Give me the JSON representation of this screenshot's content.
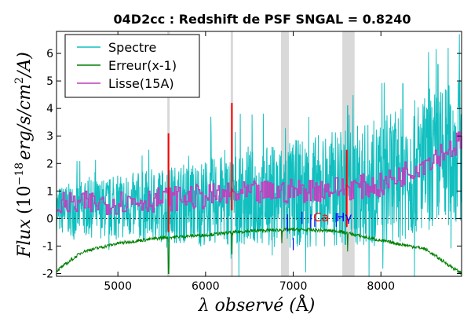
{
  "chart_data": {
    "type": "line",
    "title": "04D2cc : Redshift de PSF SNGAL = 0.8240",
    "xlabel": "λ observé (Å)",
    "ylabel": "Flux (10^-18 erg/s/cm²/A)",
    "ylabel_parts": {
      "word": "Flux",
      "open": "(10",
      "exp": "−18",
      "units": "erg/s/cm",
      "sq": "2",
      "tail": "/A)"
    },
    "xlabel_parts": {
      "main": "λ observé (",
      "unit": "Å",
      "close": ")"
    },
    "xlim": [
      4300,
      8920
    ],
    "ylim": [
      -2.1,
      6.8
    ],
    "x_ticks": [
      5000,
      6000,
      7000,
      8000
    ],
    "x_tick_labels": [
      "5000",
      "6000",
      "7000",
      "8000"
    ],
    "y_ticks": [
      -2,
      -1,
      0,
      1,
      2,
      3,
      4,
      5,
      6
    ],
    "y_tick_labels": [
      "-2",
      "-1",
      "0",
      "1",
      "2",
      "3",
      "4",
      "5",
      "6"
    ],
    "legend_position": "top-left",
    "grid": false,
    "colors": {
      "spectrum": "#11bfbf",
      "error": "#008000",
      "smooth": "#bf3fbf",
      "sky": "#ff0000",
      "band": "#d9d9d9",
      "lines": "#0000ff",
      "line_labels_red": "#ff0000"
    },
    "series": [
      {
        "name": "Spectre",
        "x_range": [
          4300,
          8920
        ],
        "shape_points": [
          [
            4300,
            0.3
          ],
          [
            5000,
            0.4
          ],
          [
            6000,
            0.6
          ],
          [
            7000,
            0.9
          ],
          [
            8000,
            1.3
          ],
          [
            8920,
            2.5
          ]
        ],
        "spike_points": [
          [
            8895,
            6.7
          ],
          [
            8650,
            5.6
          ],
          [
            8250,
            4.9
          ],
          [
            7620,
            4.1
          ],
          [
            6060,
            3.7
          ]
        ]
      },
      {
        "name": "Erreur(x-1)",
        "x_range": [
          4300,
          8920
        ],
        "shape_points": [
          [
            4300,
            -1.9
          ],
          [
            4600,
            -1.2
          ],
          [
            5000,
            -0.9
          ],
          [
            5500,
            -0.7
          ],
          [
            6000,
            -0.6
          ],
          [
            6500,
            -0.45
          ],
          [
            7000,
            -0.4
          ],
          [
            7500,
            -0.45
          ],
          [
            8000,
            -0.8
          ],
          [
            8500,
            -1.1
          ],
          [
            8920,
            -2.0
          ]
        ],
        "dip_points": [
          [
            5577,
            -2.0
          ],
          [
            6300,
            -1.3
          ],
          [
            6870,
            -0.9
          ],
          [
            7620,
            -1.2
          ]
        ]
      },
      {
        "name": "Lisse(15A)",
        "x_range": [
          4300,
          8920
        ],
        "shape_points": [
          [
            4300,
            0.5
          ],
          [
            5000,
            0.6
          ],
          [
            6000,
            0.8
          ],
          [
            7000,
            1.0
          ],
          [
            8000,
            1.2
          ],
          [
            8920,
            2.8
          ]
        ]
      }
    ],
    "sky_lines": [
      {
        "x": 5577,
        "y_top": 3.1,
        "y_bottom": -0.5
      },
      {
        "x": 6300,
        "y_top": 4.2,
        "y_bottom": 0.3
      },
      {
        "x": 7610,
        "y_top": 2.5,
        "y_bottom": -0.3
      }
    ],
    "telluric_bands": [
      [
        6860,
        6950
      ],
      [
        7560,
        7700
      ]
    ],
    "thin_bands": [
      5577,
      6300
    ],
    "line_markers": [
      {
        "x": 6935,
        "y_top": 0.15,
        "y_bottom": -0.45
      },
      {
        "x": 7000,
        "y_top": -0.7,
        "y_bottom": -1.15
      },
      {
        "x": 7100,
        "y_top": 0.25,
        "y_bottom": -0.2
      },
      {
        "x": 7200,
        "y_top": 0.15,
        "y_bottom": -0.35
      },
      {
        "x": 7245,
        "y_top": 0.15,
        "y_bottom": -0.3
      },
      {
        "x": 7490,
        "y_top": 0.2,
        "y_bottom": -0.3
      }
    ],
    "line_labels": [
      {
        "text": "Ca",
        "x": 7230,
        "y": -0.1,
        "color": "red"
      },
      {
        "text": "Hγ",
        "x": 7490,
        "y": -0.1,
        "color": "blue"
      }
    ]
  }
}
